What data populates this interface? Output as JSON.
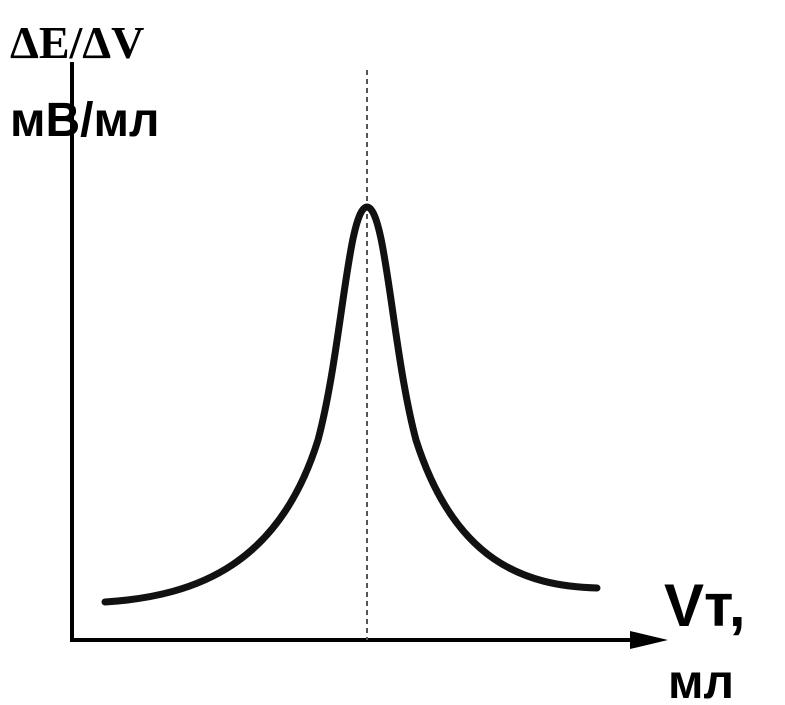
{
  "axis_labels": {
    "y": {
      "quantity": "ΔE/ΔV",
      "unit": "мВ/мл"
    },
    "x": {
      "quantity": "Vт,",
      "unit": "мл"
    }
  }
}
